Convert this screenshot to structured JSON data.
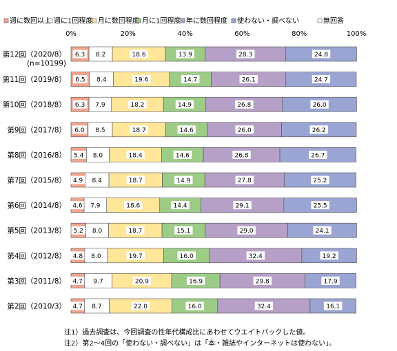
{
  "chart_data": {
    "type": "bar",
    "orientation": "horizontal",
    "stacked": true,
    "xlim": [
      0,
      100
    ],
    "x_ticks": [
      "0%",
      "20%",
      "40%",
      "60%",
      "80%",
      "100%"
    ],
    "grid": false,
    "legend_position": "top",
    "categories": [
      "第12回（2020/8）(n=10199)",
      "第11回（2019/8）",
      "第10回（2018/8）",
      "第9回（2017/8）",
      "第8回（2016/8）",
      "第7回（2015/8）",
      "第6回（2014/8）",
      "第5回（2013/8）",
      "第4回（2012/8）",
      "第3回（2011/8）",
      "第2回（2010/3）"
    ],
    "category_lines": [
      [
        "第12回（2020/8）",
        "(n=10199)"
      ],
      [
        "第11回（2019/8）"
      ],
      [
        "第10回（2018/8）"
      ],
      [
        "第9回（2017/8）"
      ],
      [
        "第8回（2016/8）"
      ],
      [
        "第7回（2015/8）"
      ],
      [
        "第6回（2014/8）"
      ],
      [
        "第5回（2013/8）"
      ],
      [
        "第4回（2012/8）"
      ],
      [
        "第3回（2011/8）"
      ],
      [
        "第2回（2010/3）"
      ]
    ],
    "series": [
      {
        "name": "週に数回以上",
        "color": "#f4a48c",
        "values": [
          6.3,
          6.5,
          6.3,
          6.0,
          5.4,
          4.9,
          4.6,
          5.2,
          4.8,
          4.7,
          4.7
        ]
      },
      {
        "name": "週に1回程度",
        "color": "#ffffff",
        "values": [
          8.2,
          8.4,
          7.9,
          8.5,
          8.0,
          8.4,
          7.9,
          8.0,
          8.0,
          9.7,
          8.7
        ]
      },
      {
        "name": "月に数回程度",
        "color": "#ffe699",
        "values": [
          18.6,
          19.6,
          18.2,
          18.7,
          18.4,
          18.7,
          18.6,
          18.7,
          19.7,
          20.9,
          22.0
        ]
      },
      {
        "name": "月に1回程度",
        "color": "#9dcc86",
        "values": [
          13.9,
          14.7,
          14.9,
          14.6,
          14.6,
          14.9,
          14.4,
          15.1,
          16.0,
          16.9,
          16.0
        ]
      },
      {
        "name": "年に数回程度",
        "color": "#b7a0c8",
        "values": [
          28.3,
          26.1,
          26.8,
          26.0,
          26.8,
          27.8,
          29.1,
          29.0,
          32.4,
          29.8,
          32.4
        ]
      },
      {
        "name": "使わない・調べない",
        "color": "#9aa5d3",
        "values": [
          24.8,
          24.7,
          26.0,
          26.2,
          26.7,
          25.2,
          25.5,
          24.1,
          19.2,
          17.9,
          16.1
        ]
      },
      {
        "name": "無回答",
        "color": "#ffffff",
        "values": [
          0,
          0,
          0,
          0,
          0,
          0,
          0,
          0,
          0,
          0,
          0
        ]
      }
    ],
    "value_labels": [
      [
        "6.3",
        "6.5",
        "6.3",
        "6.0",
        "5.4",
        "4.9",
        "4.6",
        "5.2",
        "4.8",
        "4.7",
        "4.7"
      ],
      [
        "8.2",
        "8.4",
        "7.9",
        "8.5",
        "8.0",
        "8.4",
        "7.9",
        "8.0",
        "8.0",
        "9.7",
        "8.7"
      ],
      [
        "18.6",
        "19.6",
        "18.2",
        "18.7",
        "18.4",
        "18.7",
        "18.6",
        "18.7",
        "19.7",
        "20.9",
        "22.0"
      ],
      [
        "13.9",
        "14.7",
        "14.9",
        "14.6",
        "14.6",
        "14.9",
        "14.4",
        "15.1",
        "16.0",
        "16.9",
        "16.0"
      ],
      [
        "28.3",
        "26.1",
        "26.8",
        "26.0",
        "26.8",
        "27.8",
        "29.1",
        "29.0",
        "32.4",
        "29.8",
        "32.4"
      ],
      [
        "24.8",
        "24.7",
        "26.0",
        "26.2",
        "26.7",
        "25.2",
        "25.5",
        "24.1",
        "19.2",
        "17.9",
        "16.1"
      ],
      [
        "",
        "",
        "",
        "",
        "",
        "",
        "",
        "",
        "",
        "",
        ""
      ]
    ]
  },
  "notes": [
    "注1）過去調査は、今回調査の性年代構成比にあわせてウエイトバックした値。",
    "注2）第2～4回の「使わない・調べない」は「本・雑誌やインターネットは使わない」。"
  ]
}
